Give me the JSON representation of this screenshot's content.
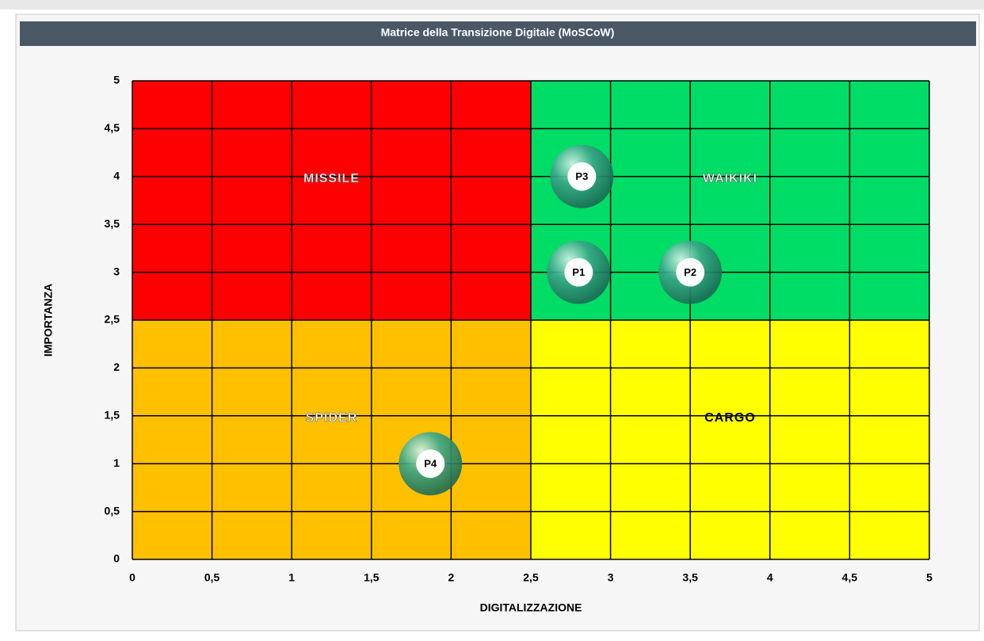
{
  "chart_data": {
    "type": "scatter",
    "title": "Matrice della Transizione Digitale (MoSCoW)",
    "x_label": "DIGITALIZZAZIONE",
    "y_label": "IMPORTANZA",
    "labels": [
      "P1",
      "P2",
      "P3",
      "P4"
    ],
    "x": [
      2.8,
      3.5,
      2.82,
      1.87
    ],
    "values": [
      3,
      3,
      4,
      1
    ],
    "color": "#2e9e7a",
    "xlim": [
      0,
      5
    ],
    "ylim": [
      0,
      5
    ],
    "xticks": [
      0,
      {
        "value": 0.5,
        "label": "0,5"
      },
      1,
      {
        "value": 1.5,
        "label": "1,5"
      },
      2,
      {
        "value": 2.5,
        "label": "2,5"
      },
      3,
      {
        "value": 3.5,
        "label": "3,5"
      },
      4,
      {
        "value": 4.5,
        "label": "4,5"
      },
      5
    ],
    "yticks": [
      0,
      {
        "value": 0.5,
        "label": "0,5"
      },
      1,
      {
        "value": 1.5,
        "label": "1,5"
      },
      2,
      {
        "value": 2.5,
        "label": "2,5"
      },
      3,
      {
        "value": 3.5,
        "label": "3,5"
      },
      4,
      {
        "value": 4.5,
        "label": "4,5"
      },
      5
    ],
    "grid": true,
    "quadrants": [
      {
        "label": "MISSILE",
        "color": "#ff0000",
        "x": [
          0,
          2.5
        ],
        "y": [
          2.5,
          5
        ]
      },
      {
        "label": "WAIKIKI",
        "color": "#00dd66",
        "x": [
          2.5,
          5
        ],
        "y": [
          2.5,
          5
        ]
      },
      {
        "label": "SPIDER",
        "color": "#ffc000",
        "x": [
          0,
          2.5
        ],
        "y": [
          0,
          2.5
        ]
      },
      {
        "label": "CARGO",
        "color": "#ffff00",
        "x": [
          2.5,
          5
        ],
        "y": [
          0,
          2.5
        ]
      }
    ]
  }
}
